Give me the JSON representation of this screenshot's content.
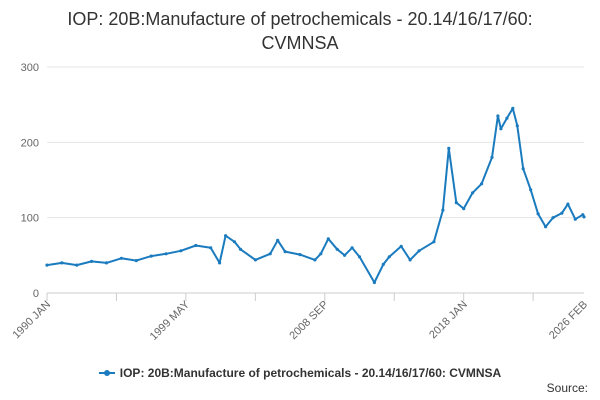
{
  "chart_data": {
    "type": "line",
    "title": "IOP: 20B:Manufacture of petrochemicals - 20.14/16/17/60: CVMNSA",
    "xlabel": "",
    "ylabel": "",
    "ylim": [
      0,
      300
    ],
    "yticks": [
      0,
      100,
      200,
      300
    ],
    "x_range": [
      1990,
      2026.083
    ],
    "xticks": [
      {
        "label": "1990 JAN",
        "value": 1990.0
      },
      {
        "label": "1999 MAY",
        "value": 1999.333
      },
      {
        "label": "2008 SEP",
        "value": 2008.667
      },
      {
        "label": "2018 JAN",
        "value": 2018.0
      },
      {
        "label": "2026 FEB",
        "value": 2026.083
      }
    ],
    "grid": true,
    "legend_position": "bottom",
    "source_text": "Source:",
    "series": [
      {
        "name": "IOP: 20B:Manufacture of petrochemicals - 20.14/16/17/60: CVMNSA",
        "color": "#1a7bbf",
        "x": [
          1990,
          1991,
          1992,
          1993,
          1994,
          1995,
          1996,
          1997,
          1998,
          1999,
          2000,
          2001,
          2001.6,
          2002,
          2002.6,
          2003,
          2004,
          2005,
          2005.5,
          2006,
          2007,
          2008,
          2008.4,
          2008.9,
          2009.5,
          2010,
          2010.5,
          2011,
          2012,
          2012.6,
          2013,
          2013.8,
          2014.4,
          2015,
          2016,
          2016.6,
          2017,
          2017.5,
          2018,
          2018.6,
          2019.2,
          2019.9,
          2020.3,
          2020.5,
          2020.9,
          2021.3,
          2021.6,
          2022,
          2022.5,
          2023,
          2023.5,
          2024,
          2024.6,
          2025,
          2025.5,
          2026,
          2026.08
        ],
        "y": [
          37,
          40,
          37,
          42,
          40,
          46,
          43,
          49,
          52,
          56,
          63,
          60,
          40,
          76,
          68,
          58,
          44,
          52,
          70,
          55,
          51,
          44,
          52,
          72,
          58,
          50,
          60,
          48,
          14,
          38,
          48,
          62,
          44,
          56,
          68,
          110,
          192,
          120,
          112,
          133,
          145,
          180,
          235,
          218,
          232,
          245,
          222,
          165,
          137,
          105,
          88,
          100,
          106,
          118,
          98,
          104,
          101
        ]
      }
    ]
  }
}
